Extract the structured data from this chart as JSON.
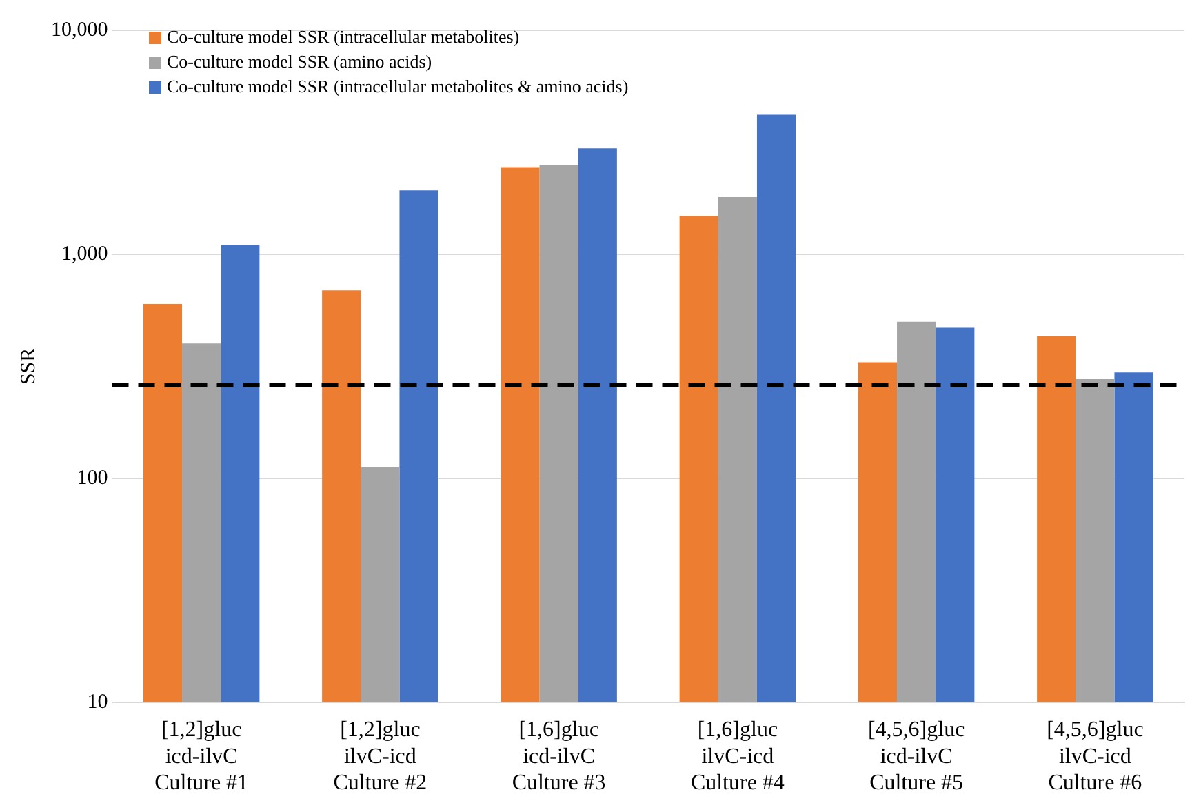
{
  "chart_data": {
    "type": "bar",
    "ylabel": "SSR",
    "log": "y",
    "grid": "y",
    "legend": "top left",
    "categories": [
      "[1,2]gluc\nicd-ilvC\nCulture #1",
      "[1,2]gluc\nilvC-icd\nCulture #2",
      "[1,6]gluc\nicd-ilvC\nCulture #3",
      "[1,6]gluc\nilvC-icd\nCulture #4",
      "[4,5,6]gluc\nicd-ilvC\nCulture #5",
      "[4,5,6]gluc\nilvC-icd\nCulture #6"
    ],
    "series": [
      {
        "name": "Co-culture model SSR (intracellular metabolites)",
        "color": "#ed7d31",
        "values": [
          600,
          690,
          2450,
          1480,
          330,
          430
        ]
      },
      {
        "name": "Co-culture model SSR (amino acids)",
        "color": "#a5a5a5",
        "values": [
          400,
          112,
          2500,
          1800,
          500,
          277
        ]
      },
      {
        "name": "Co-culture model SSR (intracellular metabolites & amino acids)",
        "color": "#4472c4",
        "values": [
          1100,
          1930,
          2970,
          4200,
          470,
          297
        ]
      }
    ],
    "ylim": [
      10,
      10000
    ],
    "yticks": [
      {
        "value": 10,
        "label": "10"
      },
      {
        "value": 100,
        "label": "100"
      },
      {
        "value": 1000,
        "label": "1,000"
      },
      {
        "value": 10000,
        "label": "10,000"
      }
    ],
    "ref_lines": [
      {
        "axis": "y",
        "value": 260,
        "color": "#000000",
        "line_style": "dashed"
      }
    ]
  }
}
